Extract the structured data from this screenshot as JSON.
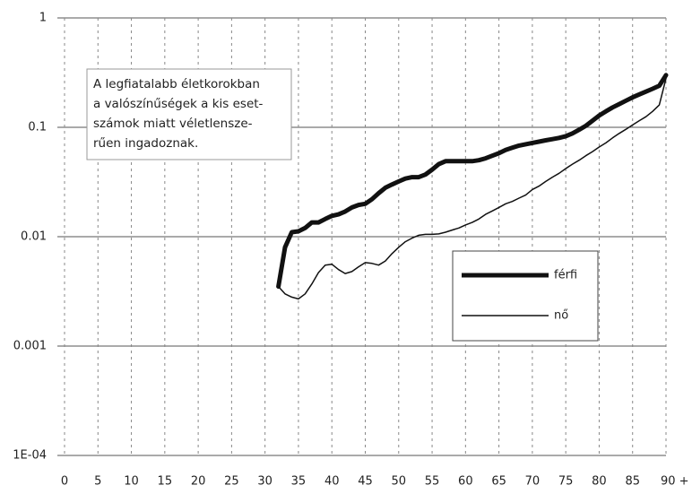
{
  "chart_data": {
    "type": "line",
    "log_y": true,
    "grid": true,
    "x": [
      32,
      33,
      34,
      35,
      36,
      37,
      38,
      39,
      40,
      41,
      42,
      43,
      44,
      45,
      46,
      47,
      48,
      49,
      50,
      51,
      52,
      53,
      54,
      55,
      56,
      57,
      58,
      59,
      60,
      61,
      62,
      63,
      64,
      65,
      66,
      67,
      68,
      69,
      70,
      71,
      72,
      73,
      74,
      75,
      76,
      77,
      78,
      79,
      80,
      81,
      82,
      83,
      84,
      85,
      86,
      87,
      88,
      89,
      90
    ],
    "series": [
      {
        "name": "férfi",
        "color": "#111111",
        "line_width": 5,
        "values": [
          0.0035,
          0.008,
          0.011,
          0.0112,
          0.012,
          0.0135,
          0.0135,
          0.0145,
          0.0155,
          0.016,
          0.017,
          0.0185,
          0.0195,
          0.02,
          0.022,
          0.025,
          0.028,
          0.03,
          0.032,
          0.034,
          0.035,
          0.035,
          0.037,
          0.041,
          0.046,
          0.049,
          0.049,
          0.049,
          0.049,
          0.049,
          0.05,
          0.052,
          0.055,
          0.058,
          0.062,
          0.065,
          0.068,
          0.07,
          0.072,
          0.074,
          0.076,
          0.078,
          0.08,
          0.083,
          0.088,
          0.095,
          0.103,
          0.115,
          0.128,
          0.14,
          0.152,
          0.163,
          0.175,
          0.188,
          0.2,
          0.212,
          0.225,
          0.24,
          0.3
        ]
      },
      {
        "name": "nő",
        "color": "#111111",
        "line_width": 1.5,
        "values": [
          0.0035,
          0.003,
          0.0028,
          0.0027,
          0.003,
          0.0037,
          0.0047,
          0.0055,
          0.0056,
          0.005,
          0.0046,
          0.0048,
          0.0053,
          0.0058,
          0.0057,
          0.0055,
          0.006,
          0.007,
          0.008,
          0.009,
          0.0097,
          0.0103,
          0.0105,
          0.0105,
          0.0106,
          0.011,
          0.0115,
          0.012,
          0.0128,
          0.0135,
          0.0145,
          0.016,
          0.0172,
          0.0185,
          0.02,
          0.021,
          0.0225,
          0.024,
          0.027,
          0.029,
          0.032,
          0.035,
          0.038,
          0.042,
          0.046,
          0.05,
          0.055,
          0.06,
          0.066,
          0.072,
          0.08,
          0.088,
          0.096,
          0.105,
          0.115,
          0.125,
          0.14,
          0.16,
          0.28
        ]
      }
    ],
    "xlim": [
      0,
      90
    ],
    "xticks": [
      0,
      5,
      10,
      15,
      20,
      25,
      30,
      35,
      40,
      45,
      50,
      55,
      60,
      65,
      70,
      75,
      80,
      85,
      {
        "value": 90,
        "label": "90 +"
      }
    ],
    "ylim": [
      0.0001,
      1
    ],
    "yticks": [
      1,
      0.1,
      0.01,
      0.001,
      {
        "value": 0.0001,
        "label": "1E-04"
      }
    ],
    "annotation": [
      "A legfiatalabb életkorokban",
      "a valószínűségek a kis eset-",
      "számok miatt véletlensze-",
      "rűen ingadoznak."
    ]
  }
}
